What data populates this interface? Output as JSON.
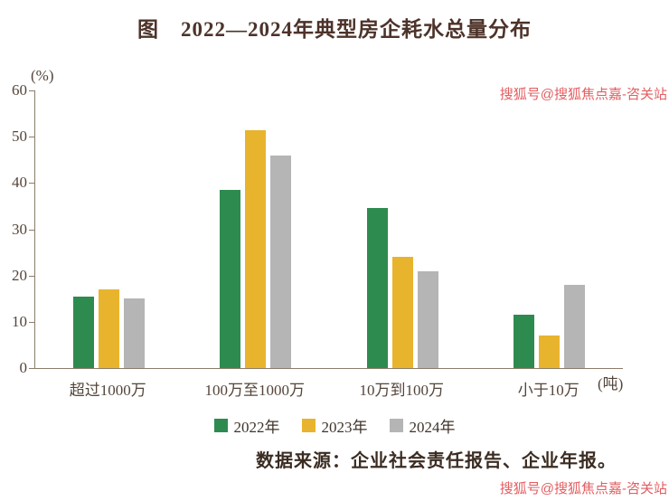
{
  "chart_data": {
    "type": "bar",
    "title": "图　2022—2024年典型房企耗水总量分布",
    "ylabel": "(%)",
    "x_unit_label": "(吨)",
    "ylim": [
      0,
      60
    ],
    "yticks": [
      0,
      10,
      20,
      30,
      40,
      50,
      60
    ],
    "categories": [
      "超过1000万",
      "100万至1000万",
      "10万到100万",
      "小于10万"
    ],
    "series": [
      {
        "name": "2022年",
        "color": "#2e8b4f",
        "values": [
          15.5,
          38.5,
          34.5,
          11.5
        ]
      },
      {
        "name": "2023年",
        "color": "#e9b42d",
        "values": [
          17,
          51.5,
          24,
          7
        ]
      },
      {
        "name": "2024年",
        "color": "#b5b5b5",
        "values": [
          15,
          46,
          21,
          18
        ]
      }
    ],
    "legend_position": "bottom",
    "grid": false
  },
  "source_note": "数据来源：企业社会责任报告、企业年报。",
  "watermarks": {
    "top": "搜狐号@搜狐焦点嘉-咨关站",
    "bottom": "搜狐号@搜狐焦点嘉-咨关站"
  },
  "colors": {
    "title_text": "#4d332a",
    "axis_line": "#8c7c6c",
    "tick_text": "#54453a",
    "source_text": "#3b2c22",
    "watermark_red": "#e0474b",
    "series_2022": "#2e8b4f",
    "series_2023": "#e9b42d",
    "series_2024": "#b5b5b5"
  }
}
